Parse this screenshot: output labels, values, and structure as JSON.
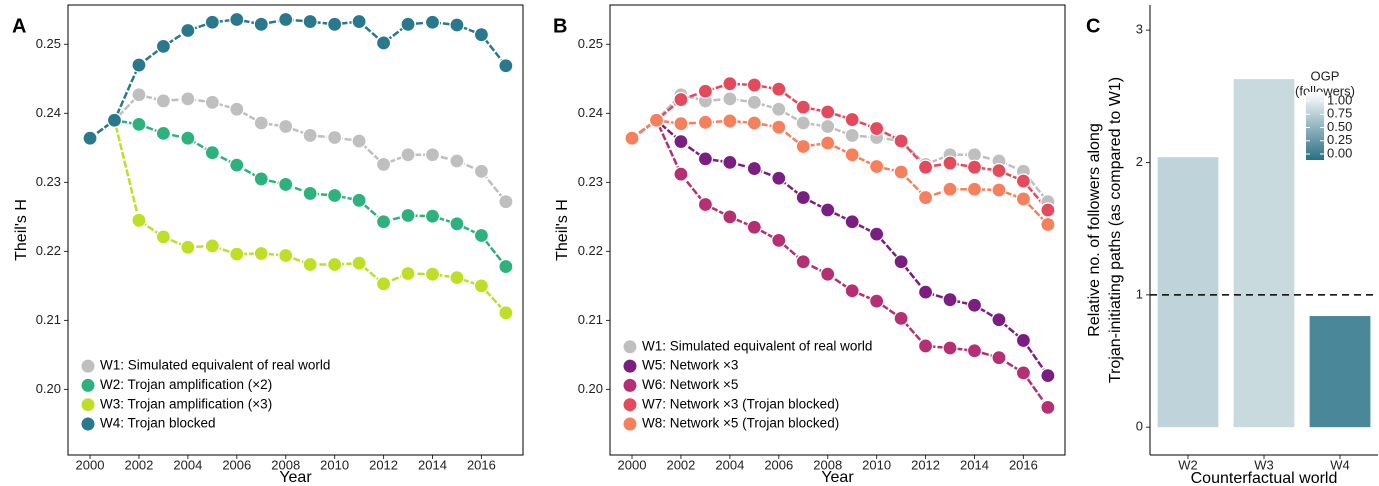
{
  "chart_data": [
    {
      "type": "line",
      "panel_label": "A",
      "y_label": "Theil's H",
      "x_label": "Year",
      "x": [
        2000,
        2001,
        2002,
        2003,
        2004,
        2005,
        2006,
        2007,
        2008,
        2009,
        2010,
        2011,
        2012,
        2013,
        2014,
        2015,
        2016,
        2017
      ],
      "xlim": [
        1999.1,
        2017.7
      ],
      "xticks": [
        2000,
        2002,
        2004,
        2006,
        2008,
        2010,
        2012,
        2014,
        2016
      ],
      "ylim": [
        0.1905,
        0.2557
      ],
      "yticks": [
        {
          "value": 0.2,
          "label": "0.20"
        },
        0.21,
        0.22,
        0.23,
        0.24,
        0.25
      ],
      "legend_position": "bottom-left",
      "series": [
        {
          "name": "W1: Simulated equivalent of real world",
          "color": "#bfbfbf",
          "values": [
            0.2364,
            0.239,
            0.2427,
            0.2418,
            0.2421,
            0.2416,
            0.2406,
            0.2386,
            0.2381,
            0.2368,
            0.2365,
            0.236,
            0.2326,
            0.234,
            0.234,
            0.2331,
            0.2316,
            0.2272
          ]
        },
        {
          "name": "W2: Trojan amplification (×2)",
          "color": "#2db27d",
          "values": [
            0.2364,
            0.239,
            0.2384,
            0.2371,
            0.2364,
            0.2343,
            0.2325,
            0.2305,
            0.2297,
            0.2284,
            0.2281,
            0.2274,
            0.2243,
            0.2252,
            0.2251,
            0.224,
            0.2223,
            0.2178
          ]
        },
        {
          "name": "W3: Trojan amplification (×3)",
          "color": "#bddf26",
          "values": [
            0.2364,
            0.239,
            0.2245,
            0.2221,
            0.2206,
            0.2208,
            0.2196,
            0.2197,
            0.2194,
            0.2181,
            0.2181,
            0.2183,
            0.2153,
            0.2168,
            0.2167,
            0.2162,
            0.215,
            0.2111
          ]
        },
        {
          "name": "W4: Trojan blocked",
          "color": "#2a788e",
          "values": [
            0.2364,
            0.239,
            0.247,
            0.2497,
            0.252,
            0.2532,
            0.2536,
            0.2529,
            0.2536,
            0.2533,
            0.2529,
            0.2533,
            0.2502,
            0.2529,
            0.2532,
            0.2528,
            0.2514,
            0.2469
          ]
        }
      ]
    },
    {
      "type": "line",
      "panel_label": "B",
      "y_label": "Theil's H",
      "x_label": "Year",
      "x": [
        2000,
        2001,
        2002,
        2003,
        2004,
        2005,
        2006,
        2007,
        2008,
        2009,
        2010,
        2011,
        2012,
        2013,
        2014,
        2015,
        2016,
        2017
      ],
      "xlim": [
        1999.1,
        2017.7
      ],
      "xticks": [
        2000,
        2002,
        2004,
        2006,
        2008,
        2010,
        2012,
        2014,
        2016
      ],
      "ylim": [
        0.1905,
        0.2557
      ],
      "yticks": [
        {
          "value": 0.2,
          "label": "0.20"
        },
        0.21,
        0.22,
        0.23,
        0.24,
        0.25
      ],
      "legend_position": "bottom-left",
      "series": [
        {
          "name": "W1: Simulated equivalent of real world",
          "color": "#bfbfbf",
          "values": [
            0.2364,
            0.239,
            0.2427,
            0.2418,
            0.2421,
            0.2416,
            0.2406,
            0.2386,
            0.2381,
            0.2368,
            0.2365,
            0.236,
            0.2326,
            0.234,
            0.234,
            0.2331,
            0.2316,
            0.2272
          ]
        },
        {
          "name": "W5: Network ×3",
          "color": "#7a1f81",
          "values": [
            0.2364,
            0.239,
            0.2359,
            0.2334,
            0.2329,
            0.232,
            0.2306,
            0.2278,
            0.226,
            0.2243,
            0.2225,
            0.2185,
            0.2141,
            0.213,
            0.2122,
            0.2101,
            0.2071,
            0.202
          ]
        },
        {
          "name": "W6: Network ×5",
          "color": "#b52f73",
          "values": [
            0.2364,
            0.239,
            0.2312,
            0.2268,
            0.225,
            0.2235,
            0.2216,
            0.2185,
            0.2167,
            0.2143,
            0.2128,
            0.2103,
            0.2063,
            0.206,
            0.2056,
            0.2046,
            0.2024,
            0.1974
          ]
        },
        {
          "name": "W7: Network ×3 (Trojan blocked)",
          "color": "#e34a5c",
          "values": [
            0.2364,
            0.239,
            0.242,
            0.2432,
            0.2443,
            0.2441,
            0.2435,
            0.2409,
            0.2402,
            0.2391,
            0.2378,
            0.236,
            0.2322,
            0.2328,
            0.2322,
            0.2317,
            0.2302,
            0.226
          ]
        },
        {
          "name": "W8: Network ×5 (Trojan blocked)",
          "color": "#f6805c",
          "values": [
            0.2364,
            0.239,
            0.2385,
            0.2387,
            0.2389,
            0.2386,
            0.238,
            0.2352,
            0.2357,
            0.234,
            0.2323,
            0.2315,
            0.2278,
            0.229,
            0.229,
            0.2289,
            0.2276,
            0.2239
          ]
        }
      ]
    },
    {
      "type": "bar",
      "panel_label": "C",
      "y_label": [
        "Relative no. of followers along",
        "Trojan-initiating paths (as compared to W1)"
      ],
      "x_label": "Counterfactual world",
      "categories": [
        "W2",
        "W3",
        "W4"
      ],
      "values": [
        2.04,
        2.63,
        0.84
      ],
      "colors": [
        "#bfd3db",
        "#c9dadf",
        "#4a8799"
      ],
      "ylim": [
        -0.21,
        3.19
      ],
      "yticks": [
        0,
        1,
        2,
        3
      ],
      "reference_line": 1,
      "colorbar": {
        "title": [
          "OGP",
          "(followers)"
        ],
        "colors": [
          "#2a6f85",
          "#ffffff"
        ],
        "ticks": [
          {
            "value": 0,
            "label": "0.00"
          },
          {
            "value": 0.25,
            "label": "0.25"
          },
          {
            "value": 0.5,
            "label": "0.50"
          },
          {
            "value": 0.75,
            "label": "0.75"
          },
          {
            "value": 1,
            "label": "1.00"
          }
        ]
      }
    }
  ]
}
